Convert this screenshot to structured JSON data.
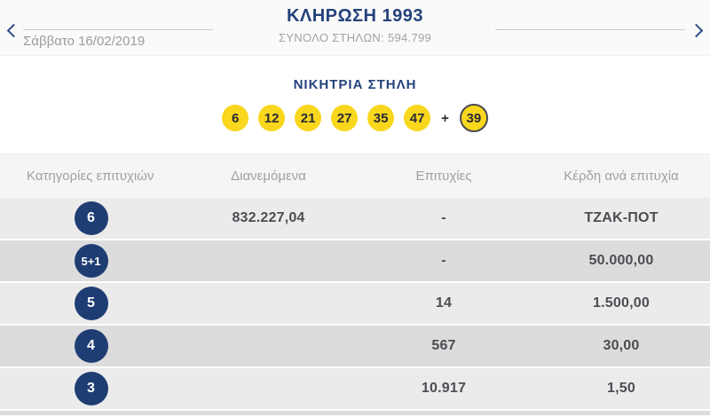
{
  "header": {
    "prev_icon": "chevron-left",
    "next_icon": "chevron-right",
    "date": "Σάββατο 16/02/2019",
    "title": "ΚΛΗΡΩΣΗ 1993",
    "subtitle": "ΣΥΝΟΛΟ ΣΤΗΛΩΝ: 594.799"
  },
  "winning": {
    "title": "ΝΙΚΗΤΡΙΑ ΣΤΗΛΗ",
    "numbers": [
      "6",
      "12",
      "21",
      "27",
      "35",
      "47"
    ],
    "plus_sign": "+",
    "bonus_number": "39"
  },
  "table": {
    "headers": [
      "Κατηγορίες επιτυχιών",
      "Διανεμόμενα",
      "Επιτυχίες",
      "Κέρδη ανά επιτυχία"
    ],
    "rows": [
      {
        "category": "6",
        "distributed": "832.227,04",
        "winners": "-",
        "prize": "ΤΖΑΚ-ΠΟΤ"
      },
      {
        "category": "5+1",
        "distributed": "",
        "winners": "-",
        "prize": "50.000,00"
      },
      {
        "category": "5",
        "distributed": "",
        "winners": "14",
        "prize": "1.500,00"
      },
      {
        "category": "4",
        "distributed": "",
        "winners": "567",
        "prize": "30,00"
      },
      {
        "category": "3",
        "distributed": "",
        "winners": "10.917",
        "prize": "1,50"
      }
    ]
  },
  "colors": {
    "navy": "#1e3d73",
    "title_blue": "#25427c",
    "ball_yellow": "#f8d71c",
    "row_light": "#ebebeb",
    "row_dark": "#dcdcdc",
    "header_gray_text": "#a0a0a4",
    "value_gray_text": "#4c4c53"
  }
}
